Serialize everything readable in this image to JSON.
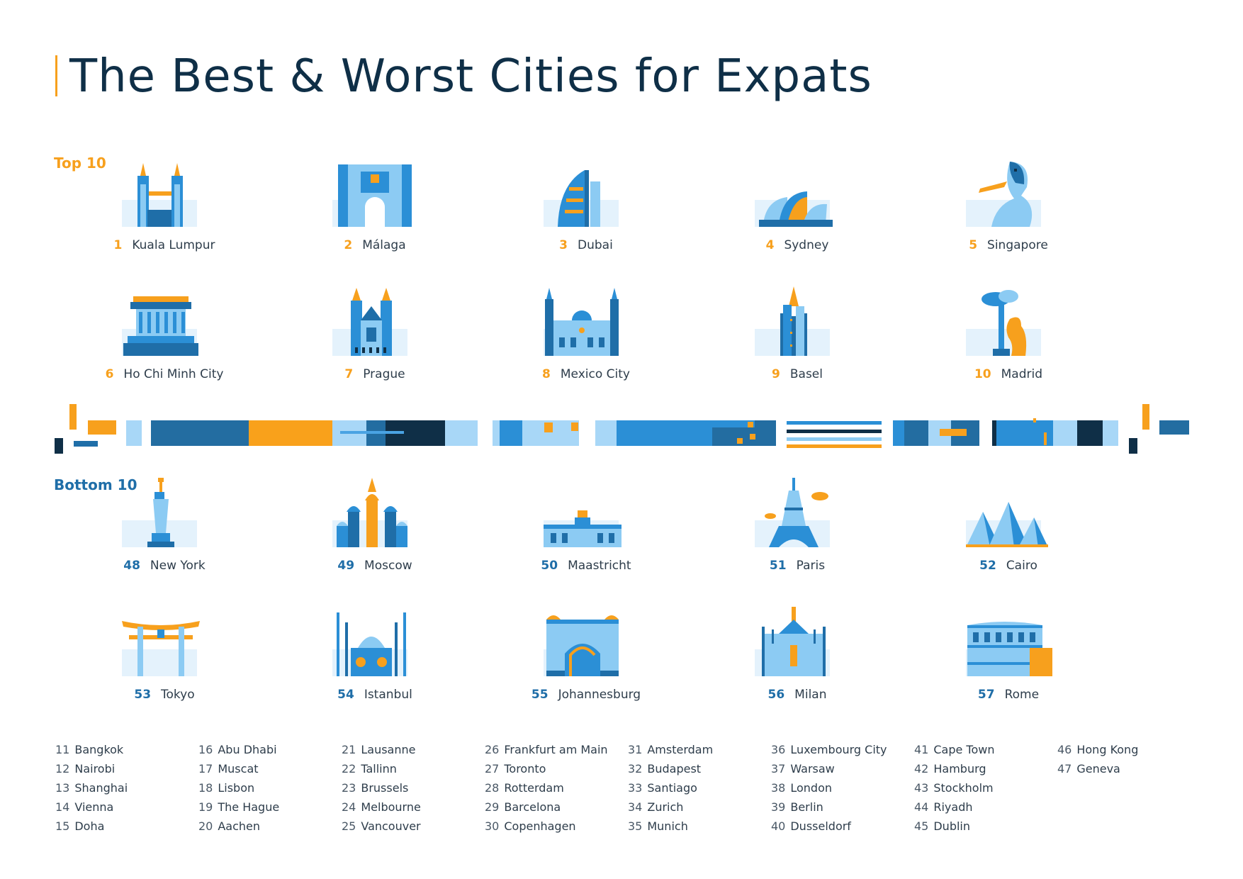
{
  "title": "The Best & Worst Cities for Expats",
  "top_label": "Top 10",
  "bottom_label": "Bottom 10",
  "colors": {
    "orange": "#f7a01d",
    "dark_navy": "#0f2f47",
    "blue": "#2b8fd6",
    "light_blue": "#8ccbf3",
    "mid_blue": "#1f6ea8",
    "pale_tile": "#e4f2fc"
  },
  "top10": [
    {
      "rank": "1",
      "city": "Kuala Lumpur",
      "icon": "petronas-towers-icon"
    },
    {
      "rank": "2",
      "city": "Málaga",
      "icon": "castle-gate-icon"
    },
    {
      "rank": "3",
      "city": "Dubai",
      "icon": "burj-al-arab-icon"
    },
    {
      "rank": "4",
      "city": "Sydney",
      "icon": "opera-house-icon"
    },
    {
      "rank": "5",
      "city": "Singapore",
      "icon": "merlion-icon"
    },
    {
      "rank": "6",
      "city": "Ho Chi Minh City",
      "icon": "mausoleum-icon"
    },
    {
      "rank": "7",
      "city": "Prague",
      "icon": "tyn-church-icon"
    },
    {
      "rank": "8",
      "city": "Mexico City",
      "icon": "cathedral-icon"
    },
    {
      "rank": "9",
      "city": "Basel",
      "icon": "minster-tower-icon"
    },
    {
      "rank": "10",
      "city": "Madrid",
      "icon": "bear-and-tree-icon"
    }
  ],
  "bottom10": [
    {
      "rank": "48",
      "city": "New York",
      "icon": "statue-of-liberty-icon"
    },
    {
      "rank": "49",
      "city": "Moscow",
      "icon": "st-basils-cathedral-icon"
    },
    {
      "rank": "50",
      "city": "Maastricht",
      "icon": "city-hall-icon"
    },
    {
      "rank": "51",
      "city": "Paris",
      "icon": "eiffel-tower-icon"
    },
    {
      "rank": "52",
      "city": "Cairo",
      "icon": "pyramids-icon"
    },
    {
      "rank": "53",
      "city": "Tokyo",
      "icon": "torii-gate-icon"
    },
    {
      "rank": "54",
      "city": "Istanbul",
      "icon": "blue-mosque-icon"
    },
    {
      "rank": "55",
      "city": "Johannesburg",
      "icon": "ornate-building-icon"
    },
    {
      "rank": "56",
      "city": "Milan",
      "icon": "milan-cathedral-icon"
    },
    {
      "rank": "57",
      "city": "Rome",
      "icon": "colosseum-icon"
    }
  ],
  "list_columns": [
    [
      {
        "n": "11",
        "city": "Bangkok"
      },
      {
        "n": "12",
        "city": "Nairobi"
      },
      {
        "n": "13",
        "city": "Shanghai"
      },
      {
        "n": "14",
        "city": "Vienna"
      },
      {
        "n": "15",
        "city": "Doha"
      }
    ],
    [
      {
        "n": "16",
        "city": "Abu Dhabi"
      },
      {
        "n": "17",
        "city": "Muscat"
      },
      {
        "n": "18",
        "city": "Lisbon"
      },
      {
        "n": "19",
        "city": "The Hague"
      },
      {
        "n": "20",
        "city": "Aachen"
      }
    ],
    [
      {
        "n": "21",
        "city": "Lausanne"
      },
      {
        "n": "22",
        "city": "Tallinn"
      },
      {
        "n": "23",
        "city": "Brussels"
      },
      {
        "n": "24",
        "city": "Melbourne"
      },
      {
        "n": "25",
        "city": "Vancouver"
      }
    ],
    [
      {
        "n": "26",
        "city": "Frankfurt am Main"
      },
      {
        "n": "27",
        "city": "Toronto"
      },
      {
        "n": "28",
        "city": "Rotterdam"
      },
      {
        "n": "29",
        "city": "Barcelona"
      },
      {
        "n": "30",
        "city": "Copenhagen"
      }
    ],
    [
      {
        "n": "31",
        "city": "Amsterdam"
      },
      {
        "n": "32",
        "city": "Budapest"
      },
      {
        "n": "33",
        "city": "Santiago"
      },
      {
        "n": "34",
        "city": "Zurich"
      },
      {
        "n": "35",
        "city": "Munich"
      }
    ],
    [
      {
        "n": "36",
        "city": "Luxembourg City"
      },
      {
        "n": "37",
        "city": "Warsaw"
      },
      {
        "n": "38",
        "city": "London"
      },
      {
        "n": "39",
        "city": "Berlin"
      },
      {
        "n": "40",
        "city": "Dusseldorf"
      }
    ],
    [
      {
        "n": "41",
        "city": "Cape Town"
      },
      {
        "n": "42",
        "city": "Hamburg"
      },
      {
        "n": "43",
        "city": "Stockholm"
      },
      {
        "n": "44",
        "city": "Riyadh"
      },
      {
        "n": "45",
        "city": "Dublin"
      }
    ],
    [
      {
        "n": "46",
        "city": "Hong Kong"
      },
      {
        "n": "47",
        "city": "Geneva"
      }
    ]
  ]
}
